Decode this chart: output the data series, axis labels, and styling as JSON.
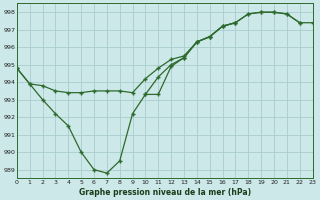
{
  "title": "Graphe pression niveau de la mer (hPa)",
  "background_color": "#cce8e8",
  "grid_color": "#aacccc",
  "line_color": "#2d6a2d",
  "x_min": 0,
  "x_max": 23,
  "y_min": 988.5,
  "y_max": 998.5,
  "series1": [
    [
      0,
      994.8
    ],
    [
      1,
      993.9
    ],
    [
      2,
      993.8
    ],
    [
      3,
      993.5
    ],
    [
      4,
      993.4
    ],
    [
      5,
      993.4
    ],
    [
      6,
      993.5
    ],
    [
      7,
      993.5
    ],
    [
      8,
      993.5
    ],
    [
      9,
      993.4
    ],
    [
      10,
      994.2
    ],
    [
      11,
      994.8
    ],
    [
      12,
      995.3
    ],
    [
      13,
      995.5
    ],
    [
      14,
      996.3
    ],
    [
      15,
      996.6
    ],
    [
      16,
      997.2
    ],
    [
      17,
      997.4
    ],
    [
      18,
      997.9
    ],
    [
      19,
      998.0
    ],
    [
      20,
      998.0
    ],
    [
      21,
      997.9
    ],
    [
      22,
      997.4
    ]
  ],
  "series2": [
    [
      0,
      994.8
    ],
    [
      1,
      993.9
    ],
    [
      2,
      993.0
    ],
    [
      3,
      992.2
    ],
    [
      4,
      991.5
    ],
    [
      5,
      990.0
    ],
    [
      6,
      989.0
    ],
    [
      7,
      988.8
    ],
    [
      8,
      989.5
    ],
    [
      9,
      992.2
    ],
    [
      10,
      993.3
    ],
    [
      11,
      993.3
    ],
    [
      12,
      994.9
    ],
    [
      13,
      995.4
    ],
    [
      14,
      996.3
    ],
    [
      15,
      996.6
    ],
    [
      16,
      997.2
    ],
    [
      17,
      997.4
    ]
  ],
  "series3": [
    [
      10,
      993.3
    ],
    [
      11,
      994.3
    ],
    [
      12,
      995.0
    ],
    [
      13,
      995.4
    ],
    [
      14,
      996.3
    ],
    [
      15,
      996.6
    ],
    [
      16,
      997.2
    ],
    [
      17,
      997.4
    ],
    [
      18,
      997.9
    ],
    [
      19,
      998.0
    ],
    [
      20,
      998.0
    ],
    [
      21,
      997.9
    ],
    [
      22,
      997.4
    ],
    [
      23,
      997.4
    ]
  ],
  "yticks": [
    989,
    990,
    991,
    992,
    993,
    994,
    995,
    996,
    997,
    998
  ],
  "xticks": [
    0,
    1,
    2,
    3,
    4,
    5,
    6,
    7,
    8,
    9,
    10,
    11,
    12,
    13,
    14,
    15,
    16,
    17,
    18,
    19,
    20,
    21,
    22,
    23
  ],
  "xlabel_fontsize": 5.5,
  "tick_fontsize": 4.5
}
